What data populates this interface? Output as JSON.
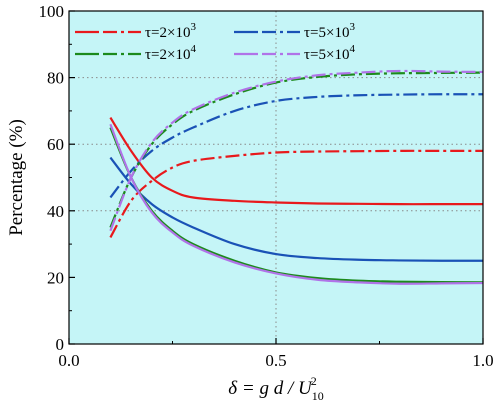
{
  "chart_data": {
    "type": "line",
    "xlabel": "δ = g d / U",
    "xlabel_sup": "2",
    "xlabel_sub": "10",
    "ylabel": "Percentage (%)",
    "xlim": [
      0.0,
      1.0
    ],
    "ylim": [
      0,
      100
    ],
    "xticks": [
      "0.0",
      "0.5",
      "1.0"
    ],
    "yticks": [
      "0",
      "20",
      "40",
      "60",
      "80",
      "100"
    ],
    "grid": "dotted at x=0.5 and y=40, 60, 80",
    "background": "#c5f5f7",
    "legend_placement": "top",
    "legend_entries": [
      {
        "label": "τ=2×10",
        "exp": "3",
        "color": "#e8191c",
        "dash": "solid+dashdot"
      },
      {
        "label": "τ=5×10",
        "exp": "3",
        "color": "#1a52b6",
        "dash": "solid+dashdot"
      },
      {
        "label": "τ=2×10",
        "exp": "4",
        "color": "#1c8a1c",
        "dash": "solid+dashdot"
      },
      {
        "label": "τ=5×10",
        "exp": "4",
        "color": "#b073e8",
        "dash": "solid+dashdot"
      }
    ],
    "x": [
      0.1,
      0.15,
      0.2,
      0.25,
      0.3,
      0.4,
      0.5,
      0.6,
      0.7,
      0.8,
      0.9,
      1.0
    ],
    "series": [
      {
        "id": "tau2e3-solid",
        "color": "#e8191c",
        "style": "solid",
        "values": [
          68,
          58,
          50,
          46,
          44,
          43,
          42.5,
          42.2,
          42.1,
          42,
          42,
          42
        ]
      },
      {
        "id": "tau2e3-dashdot",
        "color": "#e8191c",
        "style": "dashdot",
        "values": [
          32,
          43,
          49,
          53,
          55,
          56.5,
          57.5,
          57.8,
          57.9,
          58,
          58,
          58
        ]
      },
      {
        "id": "tau5e3-solid",
        "color": "#1a52b6",
        "style": "solid",
        "values": [
          56,
          48,
          42,
          38,
          35,
          30,
          27,
          25.8,
          25.3,
          25.1,
          25,
          25
        ]
      },
      {
        "id": "tau5e3-dashdot",
        "color": "#1a52b6",
        "style": "dashdot",
        "values": [
          44,
          52,
          58,
          62,
          65,
          70,
          73,
          74.2,
          74.7,
          74.9,
          75,
          75
        ]
      },
      {
        "id": "tau2e4-solid",
        "color": "#1c8a1c",
        "style": "solid",
        "values": [
          65,
          50,
          40,
          34,
          30,
          25,
          21.5,
          19.8,
          19,
          18.7,
          18.6,
          18.5
        ]
      },
      {
        "id": "tau2e4-dashdot",
        "color": "#1c8a1c",
        "style": "dashdot",
        "values": [
          35,
          50,
          60,
          66,
          70,
          75,
          78.5,
          80.2,
          81,
          81.3,
          81.4,
          81.5
        ]
      },
      {
        "id": "tau5e4-solid",
        "color": "#b073e8",
        "style": "solid",
        "values": [
          66,
          50,
          39.5,
          33.5,
          29.5,
          24.5,
          21.2,
          19.3,
          18.5,
          18.1,
          18.2,
          18.3
        ]
      },
      {
        "id": "tau5e4-dashdot",
        "color": "#b073e8",
        "style": "dashdot",
        "values": [
          34,
          50,
          60.5,
          66.5,
          70.5,
          75.5,
          78.8,
          80.7,
          81.5,
          82,
          81.8,
          81.7
        ]
      }
    ]
  }
}
